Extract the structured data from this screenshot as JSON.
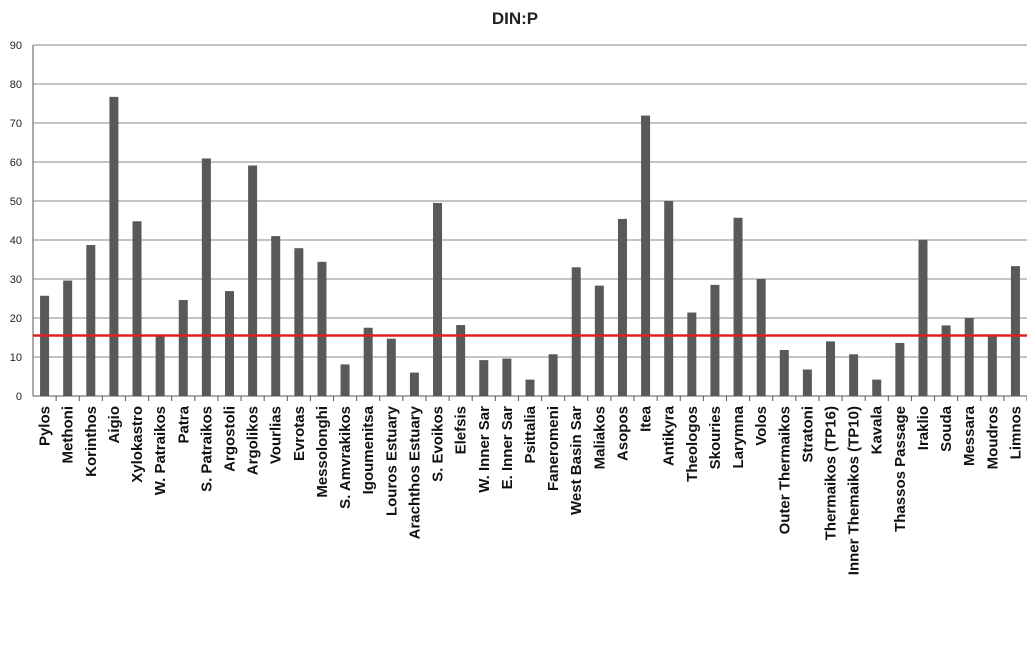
{
  "chart_data": {
    "type": "bar",
    "title": "DIN:P",
    "xlabel": "",
    "ylabel": "",
    "ylim": [
      0,
      90
    ],
    "yticks": [
      0,
      10,
      20,
      30,
      40,
      50,
      60,
      70,
      80,
      90
    ],
    "grid": true,
    "legend": "none",
    "categories": [
      "Pylos",
      "Methoni",
      "Korinthos",
      "Aigio",
      "Xylokastro",
      "W. Patraikos",
      "Patra",
      "S. Patraikos",
      "Argostoli",
      "Argolikos",
      "Vourlias",
      "Evrotas",
      "Messolonghi",
      "S. Amvrakikos",
      "Igoumenitsa",
      "Louros Estuary",
      "Arachthos Estuary",
      "S. Evoikos",
      "Elefsis",
      "W. Inner Sar",
      "E. Inner Sar",
      "Psittalia",
      "Faneromeni",
      "West Basin Sar",
      "Maliakos",
      "Asopos",
      "Itea",
      "Antikyra",
      "Theologos",
      "Skouries",
      "Larymna",
      "Volos",
      "Outer Thermaikos",
      "Stratoni",
      "Thermaikos (TP16)",
      "Inner Themaikos (TP10)",
      "Kavala",
      "Thassos Passage",
      "Iraklio",
      "Souda",
      "Messara",
      "Moudros",
      "Limnos"
    ],
    "values": [
      25.7,
      29.6,
      38.7,
      76.7,
      44.8,
      15.3,
      24.6,
      60.9,
      26.9,
      59.1,
      41.0,
      37.9,
      34.4,
      8.1,
      17.5,
      14.7,
      6.0,
      49.5,
      18.2,
      9.2,
      9.6,
      4.2,
      10.7,
      33.0,
      28.3,
      45.4,
      71.9,
      50.0,
      21.4,
      28.5,
      45.7,
      30.0,
      11.8,
      6.8,
      14.0,
      10.7,
      4.2,
      13.6,
      40.1,
      18.1,
      20.0,
      15.8,
      33.3
    ],
    "reference_line": {
      "value": 15.5,
      "color": "#e02020"
    },
    "bar_color": "#595959"
  }
}
